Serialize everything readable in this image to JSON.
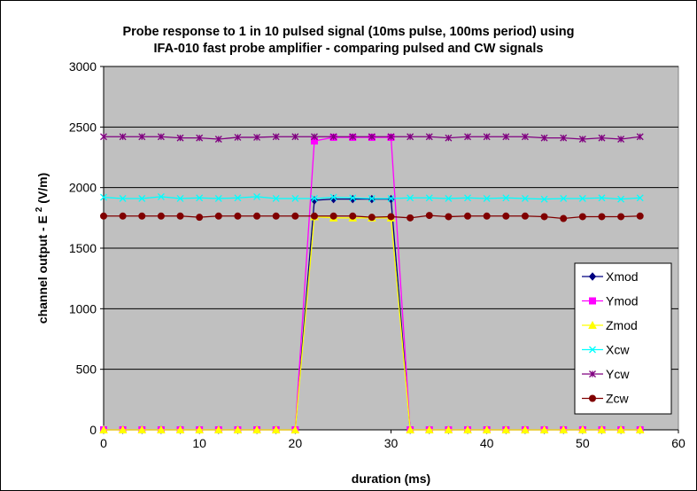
{
  "chart_data": {
    "type": "line",
    "title_line1": "Probe response to 1 in 10 pulsed signal (10ms pulse, 100ms period) using",
    "title_line2": "IFA-010 fast probe amplifier - comparing pulsed and CW signals",
    "xlabel": "duration (ms)",
    "ylabel_main": "channel output - E",
    "ylabel_sup": "2",
    "ylabel_unit": "(V/m)",
    "xlim": [
      0,
      60
    ],
    "ylim": [
      0,
      3000
    ],
    "x_ticks": [
      0,
      10,
      20,
      30,
      40,
      50,
      60
    ],
    "y_ticks": [
      0,
      500,
      1000,
      1500,
      2000,
      2500,
      3000
    ],
    "grid": "horizontal",
    "legend_position": "right",
    "plot_background": "#c0c0c0",
    "series": [
      {
        "name": "Xmod",
        "color": "#000080",
        "marker": "diamond",
        "x": [
          0,
          2,
          4,
          6,
          8,
          10,
          12,
          14,
          16,
          18,
          20,
          22,
          24,
          26,
          28,
          30,
          32,
          34,
          36,
          38,
          40,
          42,
          44,
          46,
          48,
          50,
          52,
          54,
          56
        ],
        "y": [
          0,
          0,
          0,
          0,
          0,
          0,
          0,
          0,
          0,
          0,
          0,
          1895,
          1905,
          1905,
          1905,
          1905,
          0,
          0,
          0,
          0,
          0,
          0,
          0,
          0,
          0,
          0,
          0,
          0,
          0
        ]
      },
      {
        "name": "Ymod",
        "color": "#ff00ff",
        "marker": "square",
        "x": [
          0,
          2,
          4,
          6,
          8,
          10,
          12,
          14,
          16,
          18,
          20,
          22,
          24,
          26,
          28,
          30,
          32,
          34,
          36,
          38,
          40,
          42,
          44,
          46,
          48,
          50,
          52,
          54,
          56
        ],
        "y": [
          0,
          0,
          0,
          0,
          0,
          0,
          0,
          0,
          0,
          0,
          0,
          2385,
          2415,
          2415,
          2415,
          2415,
          0,
          0,
          0,
          0,
          0,
          0,
          0,
          0,
          0,
          0,
          0,
          0,
          0
        ]
      },
      {
        "name": "Zmod",
        "color": "#ffff00",
        "marker": "triangle",
        "x": [
          0,
          2,
          4,
          6,
          8,
          10,
          12,
          14,
          16,
          18,
          20,
          22,
          24,
          26,
          28,
          30,
          32,
          34,
          36,
          38,
          40,
          42,
          44,
          46,
          48,
          50,
          52,
          54,
          56
        ],
        "y": [
          0,
          0,
          0,
          0,
          0,
          0,
          0,
          0,
          0,
          0,
          0,
          1760,
          1750,
          1750,
          1750,
          1750,
          0,
          0,
          0,
          0,
          0,
          0,
          0,
          0,
          0,
          0,
          0,
          0,
          0
        ]
      },
      {
        "name": "Xcw",
        "color": "#00ffff",
        "marker": "x",
        "x": [
          0,
          2,
          4,
          6,
          8,
          10,
          12,
          14,
          16,
          18,
          20,
          22,
          24,
          26,
          28,
          30,
          32,
          34,
          36,
          38,
          40,
          42,
          44,
          46,
          48,
          50,
          52,
          54,
          56
        ],
        "y": [
          1920,
          1910,
          1910,
          1925,
          1910,
          1915,
          1910,
          1915,
          1925,
          1910,
          1910,
          1910,
          1920,
          1915,
          1910,
          1910,
          1915,
          1915,
          1910,
          1915,
          1910,
          1915,
          1910,
          1905,
          1910,
          1910,
          1915,
          1905,
          1915
        ]
      },
      {
        "name": "Ycw",
        "color": "#800080",
        "marker": "star",
        "x": [
          0,
          2,
          4,
          6,
          8,
          10,
          12,
          14,
          16,
          18,
          20,
          22,
          24,
          26,
          28,
          30,
          32,
          34,
          36,
          38,
          40,
          42,
          44,
          46,
          48,
          50,
          52,
          54,
          56
        ],
        "y": [
          2420,
          2420,
          2420,
          2420,
          2410,
          2410,
          2400,
          2415,
          2415,
          2420,
          2420,
          2420,
          2420,
          2420,
          2420,
          2420,
          2420,
          2420,
          2410,
          2420,
          2420,
          2420,
          2420,
          2410,
          2410,
          2400,
          2410,
          2400,
          2420
        ]
      },
      {
        "name": "Zcw",
        "color": "#800000",
        "marker": "circle",
        "x": [
          0,
          2,
          4,
          6,
          8,
          10,
          12,
          14,
          16,
          18,
          20,
          22,
          24,
          26,
          28,
          30,
          32,
          34,
          36,
          38,
          40,
          42,
          44,
          46,
          48,
          50,
          52,
          54,
          56
        ],
        "y": [
          1765,
          1765,
          1765,
          1765,
          1765,
          1755,
          1765,
          1765,
          1765,
          1765,
          1765,
          1765,
          1765,
          1765,
          1755,
          1760,
          1750,
          1770,
          1760,
          1765,
          1765,
          1765,
          1765,
          1760,
          1745,
          1760,
          1760,
          1760,
          1765
        ]
      }
    ]
  }
}
